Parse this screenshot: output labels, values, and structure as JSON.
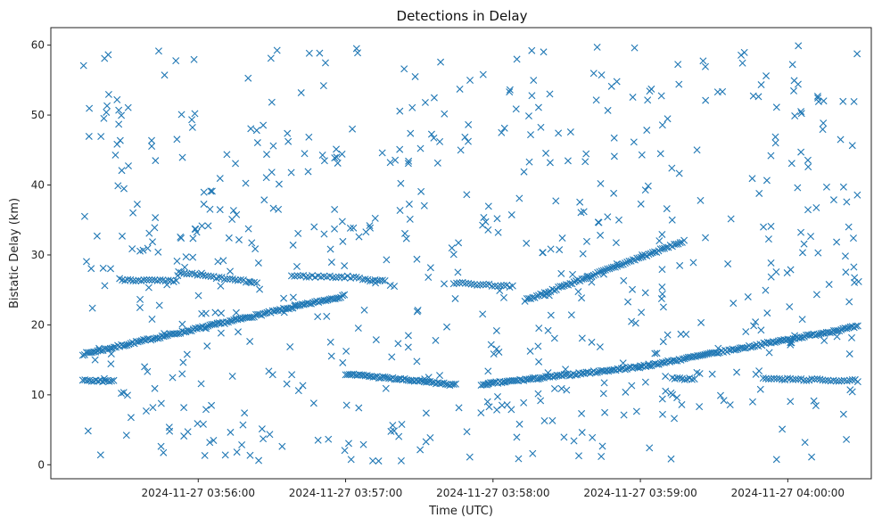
{
  "chart_data": {
    "type": "scatter",
    "title": "Detections in Delay",
    "xlabel": "Time (UTC)",
    "ylabel": "Bistatic Delay (km)",
    "marker": "x",
    "color": "#1f77b4",
    "grid": false,
    "x_ticks": [
      "2024-11-27 03:56:00",
      "2024-11-27 03:57:00",
      "2024-11-27 03:58:00",
      "2024-11-27 03:59:00",
      "2024-11-27 04:00:00"
    ],
    "x_tick_seconds": [
      60,
      120,
      180,
      240,
      300
    ],
    "xlim_seconds": [
      0,
      334
    ],
    "xlim": [
      "2024-11-27 03:55:00",
      "2024-11-27 04:00:34"
    ],
    "y_ticks": [
      0,
      10,
      20,
      30,
      40,
      50,
      60
    ],
    "ylim": [
      -2.0,
      62.5
    ],
    "series": [
      {
        "name": "",
        "tracks": [
          {
            "x_range_s": [
              13,
              120
            ],
            "y_start": 15.8,
            "y_end": 24.2,
            "step_s": 0.75
          },
          {
            "x_range_s": [
              120,
              165
            ],
            "y_start": 13.0,
            "y_end": 11.4,
            "step_s": 0.8
          },
          {
            "x_range_s": [
              176,
              240
            ],
            "y_start": 11.5,
            "y_end": 14.0,
            "step_s": 0.75
          },
          {
            "x_range_s": [
              193,
              258
            ],
            "y_start": 23.5,
            "y_end": 32.0,
            "step_s": 0.8
          },
          {
            "x_range_s": [
              240,
              329
            ],
            "y_start": 14.0,
            "y_end": 19.8,
            "step_s": 0.75
          },
          {
            "x_range_s": [
              13,
              26
            ],
            "y_start": 12.0,
            "y_end": 12.0,
            "step_s": 0.9
          },
          {
            "x_range_s": [
              28,
              52
            ],
            "y_start": 26.5,
            "y_end": 26.2,
            "step_s": 1.1
          },
          {
            "x_range_s": [
              52,
              84
            ],
            "y_start": 27.5,
            "y_end": 26.0,
            "step_s": 1.1
          },
          {
            "x_range_s": [
              98,
              126
            ],
            "y_start": 27.0,
            "y_end": 26.8,
            "step_s": 1.2
          },
          {
            "x_range_s": [
              127,
              136
            ],
            "y_start": 26.4,
            "y_end": 26.4,
            "step_s": 1.0
          },
          {
            "x_range_s": [
              164,
              188
            ],
            "y_start": 26.0,
            "y_end": 25.5,
            "step_s": 1.2
          },
          {
            "x_range_s": [
              253,
              262
            ],
            "y_start": 12.3,
            "y_end": 12.3,
            "step_s": 1.0
          },
          {
            "x_range_s": [
              290,
              329
            ],
            "y_start": 12.3,
            "y_end": 12.0,
            "step_s": 1.1
          }
        ],
        "noise": {
          "count": 640,
          "seed": 7,
          "x_range_s": [
            13,
            329
          ],
          "y_range": [
            0.5,
            60
          ]
        }
      }
    ]
  }
}
